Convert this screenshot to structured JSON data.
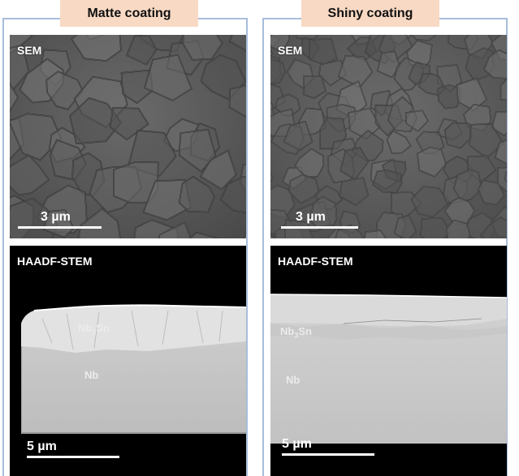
{
  "columns": [
    {
      "title": "Matte coating",
      "sem": {
        "label": "SEM",
        "scale": "3 µm"
      },
      "stem": {
        "label": "HAADF-STEM",
        "scale": "5 µm",
        "layer_main": "Nb",
        "layer_sub": "3",
        "layer_end": "Sn",
        "substrate": "Nb"
      }
    },
    {
      "title": "Shiny coating",
      "sem": {
        "label": "SEM",
        "scale": "3 µm"
      },
      "stem": {
        "label": "HAADF-STEM",
        "scale": "5 µm",
        "layer_main": "Nb",
        "layer_sub": "3",
        "layer_end": "Sn",
        "substrate": "Nb"
      }
    }
  ]
}
